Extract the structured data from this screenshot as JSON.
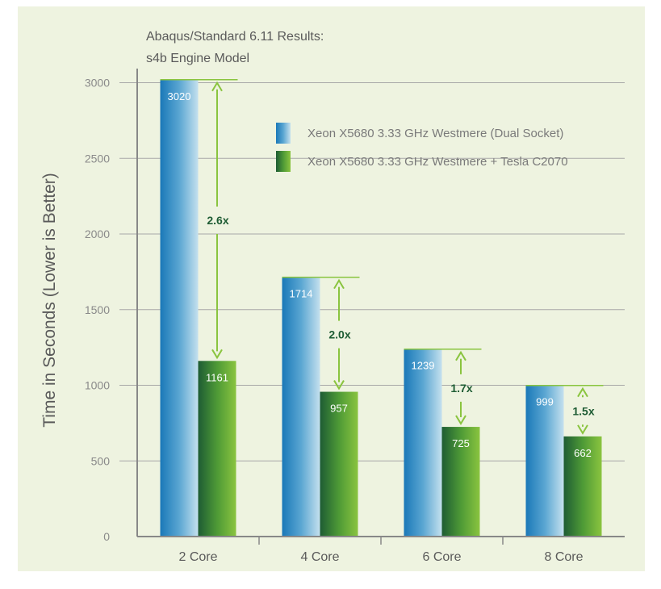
{
  "chart_data": {
    "type": "bar",
    "title": "Abaqus/Standard 6.11 Results:",
    "subtitle": "s4b Engine Model",
    "ylabel": "Time in Seconds (Lower is Better)",
    "xlabel": "",
    "ylim": [
      0,
      3000
    ],
    "yticks": [
      "0",
      "500",
      "1000",
      "1500",
      "2000",
      "2500",
      "3000"
    ],
    "categories": [
      "2 Core",
      "4 Core",
      "6 Core",
      "8 Core"
    ],
    "series": [
      {
        "name": "Xeon X5680 3.33 GHz Westmere (Dual Socket)",
        "values": [
          3020,
          1714,
          1239,
          999
        ],
        "labels": [
          "3020",
          "1714",
          "1239",
          "999"
        ]
      },
      {
        "name": "Xeon X5680 3.33 GHz Westmere + Tesla C2070",
        "values": [
          1161,
          957,
          725,
          662
        ],
        "labels": [
          "1161",
          "957",
          "725",
          "662"
        ]
      }
    ],
    "speedups": [
      "2.6x",
      "2.0x",
      "1.7x",
      "1.5x"
    ],
    "grid": true,
    "legend_position": "top-right"
  },
  "colors": {
    "background": "#eef3e0",
    "gridline": "#a8a8a8",
    "axis": "#888888",
    "arrow": "#8ac43f",
    "blue_dark": "#1a78b8",
    "blue_light": "#c4e0ee",
    "green_dark": "#1e5c34",
    "green_light": "#8ac43f"
  }
}
